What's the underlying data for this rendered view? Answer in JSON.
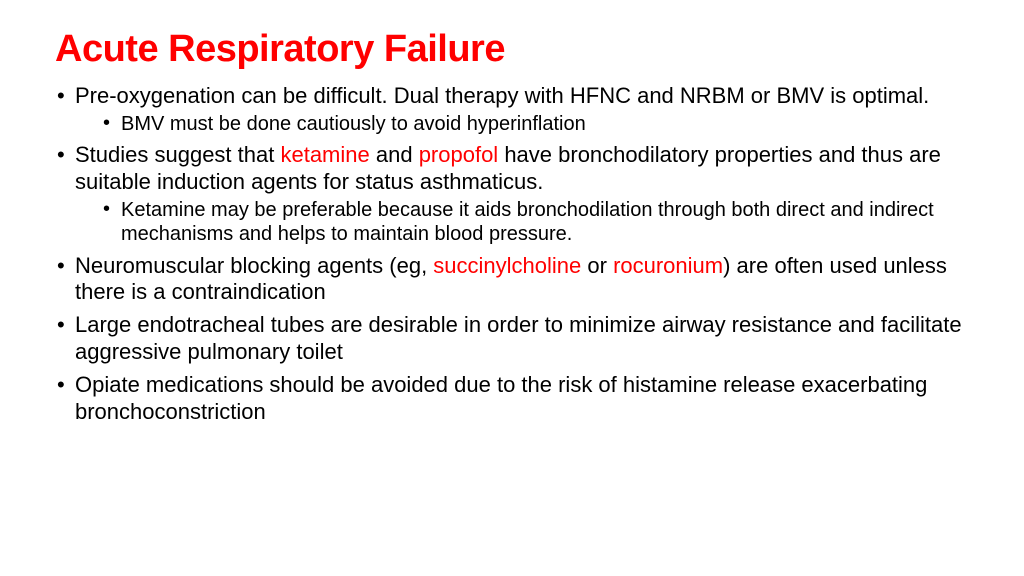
{
  "colors": {
    "title": "#ff0000",
    "body": "#000000",
    "highlight": "#ff0000",
    "background": "#ffffff"
  },
  "typography": {
    "title_fontsize": 38,
    "title_weight": 900,
    "body_fontsize": 22,
    "sub_fontsize": 20
  },
  "title": "Acute Respiratory Failure",
  "bullets": {
    "b1a": "Pre-oxygenation can be difficult. Dual therapy with HFNC and NRBM or BMV is optimal.",
    "b1sub": "BMV must be done cautiously to avoid hyperinflation",
    "b2a": "Studies suggest that ",
    "b2hl1": "ketamine",
    "b2b": " and ",
    "b2hl2": "propofol",
    "b2c": " have bronchodilatory properties and thus are suitable induction agents for status asthmaticus.",
    "b2sub": "Ketamine may be preferable because it aids bronchodilation through both direct and indirect mechanisms and helps to maintain blood pressure.",
    "b3a": "Neuromuscular blocking agents (eg, ",
    "b3hl1": "succinylcholine",
    "b3b": " or ",
    "b3hl2": "rocuronium",
    "b3c": ") are often used unless there is a contraindication",
    "b4": "Large endotracheal tubes are desirable in order to minimize airway resistance and facilitate aggressive pulmonary toilet",
    "b5": "Opiate medications should be avoided due to the risk of histamine release exacerbating bronchoconstriction"
  }
}
